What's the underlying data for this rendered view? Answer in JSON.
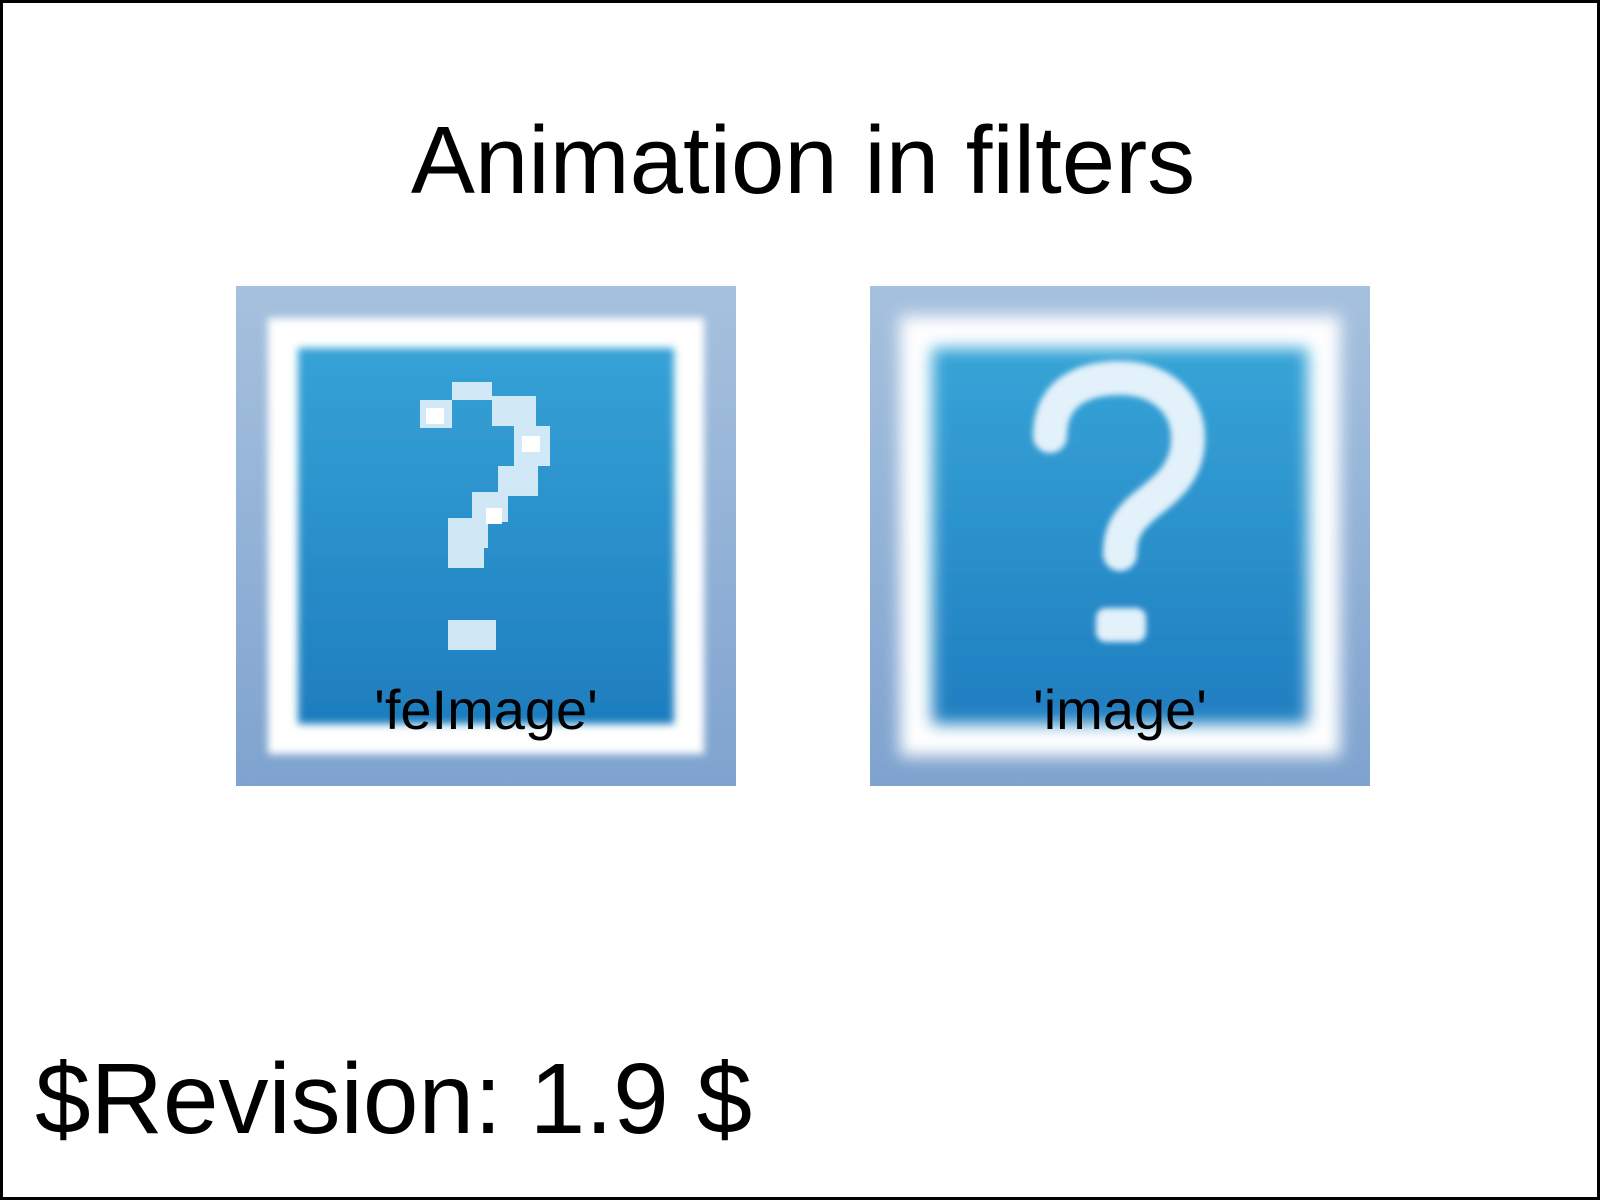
{
  "title": "Animation in filters",
  "panels": [
    {
      "label": "'feImage'",
      "icon": "question-mark-icon",
      "rendering": "pixelated"
    },
    {
      "label": "'image'",
      "icon": "question-mark-icon",
      "rendering": "smooth"
    }
  ],
  "revision": "$Revision: 1.9 $",
  "colors": {
    "frame_outer": "#a3bedd",
    "frame_outer_bottom": "#7fa3cf",
    "frame_inner": "#ffffff",
    "icon_fill_top": "#33a0d4",
    "icon_fill_bottom": "#1f7fc0",
    "glyph": "#e6f3fb",
    "border": "#000000"
  }
}
